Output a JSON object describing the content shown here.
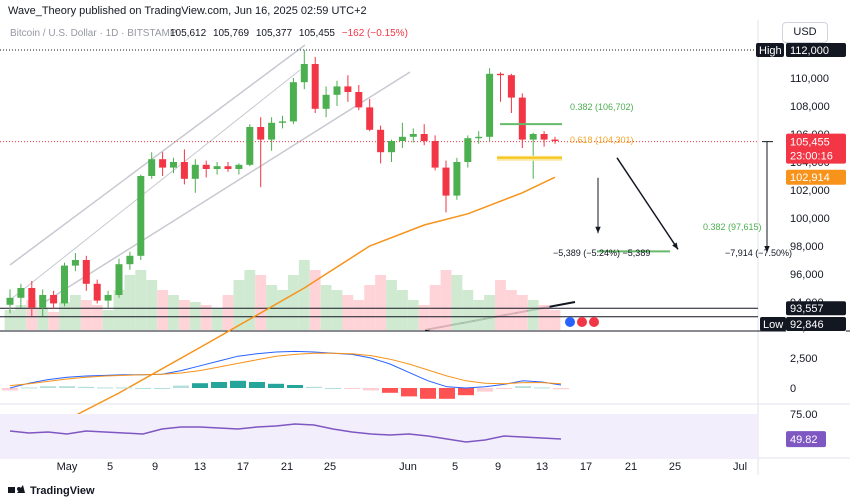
{
  "publisher_line": "Wave_Theory published on TradingView.com, Jun 16, 2025 02:59 UTC+2",
  "currency": "USD",
  "symbol": "Bitcoin / U.S. Dollar · 1D · BITSTAMP",
  "ohlc": {
    "o": "105,612",
    "h": "105,769",
    "l": "105,377",
    "c": "105,455",
    "chg": "−162 (−0.15%)"
  },
  "branding": "TradingView",
  "colors": {
    "up": "#4caf50",
    "down": "#f23645",
    "ma": "#f7931a",
    "fib": "#66bb6a",
    "fib_gold": "#f5c518",
    "macd": "#2962ff",
    "rsi": "#7e57c2"
  },
  "price_labels": {
    "high_tag": "High",
    "high": "112,000",
    "last": "105,455",
    "countdown": "23:00:16",
    "ma": "102,914",
    "p93557": "93,557",
    "p92946": "92,946",
    "low_tag": "Low",
    "low": "92,846",
    "macd_tick": "2,500",
    "macd_zero": "0",
    "rsi_tick": "75.00",
    "rsi_val": "49.82"
  },
  "annotations": {
    "fib382": "0.382 (106,702)",
    "fib618": "0.618 (104,301)",
    "fib382b": "0.382 (97,615)",
    "measure1": "−5,389 (−5.24%) −5,389",
    "measure2": "−7,914 (−7.50%)"
  },
  "chart_data": {
    "type": "candlestick",
    "instrument": "BTC/USD daily",
    "y_ticks": [
      110000,
      108000,
      106000,
      104000,
      102000,
      100000,
      98000,
      96000,
      94000
    ],
    "x_ticks": [
      "May",
      "5",
      "9",
      "13",
      "17",
      "21",
      "25",
      "Jun",
      "5",
      "9",
      "13",
      "17",
      "21",
      "25",
      "Jul"
    ],
    "candles": [
      [
        93800,
        94900,
        93200,
        94300
      ],
      [
        94300,
        95300,
        93600,
        95000
      ],
      [
        95000,
        95500,
        93000,
        93600
      ],
      [
        93600,
        94900,
        93000,
        94500
      ],
      [
        94500,
        94800,
        93500,
        93900
      ],
      [
        93900,
        96800,
        93700,
        96600
      ],
      [
        96600,
        97500,
        96200,
        97000
      ],
      [
        97000,
        97300,
        94800,
        95300
      ],
      [
        95300,
        95600,
        93900,
        94100
      ],
      [
        94100,
        94800,
        93600,
        94500
      ],
      [
        94500,
        97100,
        94300,
        96700
      ],
      [
        96700,
        97600,
        96300,
        97300
      ],
      [
        97300,
        103100,
        97000,
        103000
      ],
      [
        103000,
        104700,
        102800,
        104200
      ],
      [
        104200,
        104700,
        103000,
        103600
      ],
      [
        103600,
        104300,
        103200,
        104000
      ],
      [
        104000,
        104900,
        102400,
        102800
      ],
      [
        102800,
        104200,
        101800,
        103800
      ],
      [
        103800,
        104100,
        102900,
        103500
      ],
      [
        103500,
        104000,
        103100,
        103700
      ],
      [
        103700,
        104000,
        103300,
        103500
      ],
      [
        103500,
        103900,
        103100,
        103800
      ],
      [
        103800,
        106700,
        103700,
        106500
      ],
      [
        106500,
        107200,
        102200,
        105600
      ],
      [
        105600,
        107200,
        104800,
        106800
      ],
      [
        106800,
        107300,
        106400,
        106900
      ],
      [
        106900,
        110000,
        106700,
        109700
      ],
      [
        109700,
        112000,
        109200,
        111000
      ],
      [
        111000,
        111500,
        107500,
        107800
      ],
      [
        107800,
        109400,
        107200,
        108800
      ],
      [
        108800,
        109800,
        108000,
        109400
      ],
      [
        109400,
        110200,
        108300,
        109000
      ],
      [
        109000,
        109500,
        107700,
        107900
      ],
      [
        107900,
        108500,
        106200,
        106300
      ],
      [
        106300,
        106600,
        103900,
        104700
      ],
      [
        104700,
        105600,
        104000,
        105500
      ],
      [
        105500,
        106800,
        105000,
        105800
      ],
      [
        105800,
        106400,
        105400,
        106000
      ],
      [
        106000,
        106700,
        105200,
        105500
      ],
      [
        105500,
        105900,
        103400,
        103600
      ],
      [
        103600,
        104100,
        100400,
        101600
      ],
      [
        101600,
        104300,
        101300,
        104000
      ],
      [
        104000,
        105900,
        103600,
        105700
      ],
      [
        105700,
        106200,
        105300,
        105800
      ],
      [
        105800,
        110700,
        105500,
        110300
      ],
      [
        110300,
        110400,
        108300,
        110200
      ],
      [
        110200,
        110300,
        107500,
        108600
      ],
      [
        108600,
        108900,
        105000,
        105600
      ],
      [
        105600,
        106100,
        102800,
        106000
      ],
      [
        106000,
        106200,
        105100,
        105600
      ],
      [
        105600,
        105800,
        105300,
        105500
      ]
    ],
    "sma": [
      [
        0,
        83500
      ],
      [
        10,
        87500
      ],
      [
        18,
        91000
      ],
      [
        27,
        95000
      ],
      [
        33,
        98000
      ],
      [
        38,
        99500
      ],
      [
        42,
        100300
      ],
      [
        47,
        101800
      ],
      [
        50,
        102914
      ]
    ],
    "levels": {
      "high": 112000,
      "last": 105455,
      "ma": 102914,
      "p93557": 93557,
      "p92946": 92946,
      "low": 92846
    },
    "fib": [
      {
        "label": "0.382",
        "value": 106702
      },
      {
        "label": "0.618",
        "value": 104301
      },
      {
        "label": "0.382",
        "value": 97615
      }
    ],
    "targets": [
      {
        "text": "−5,389 (−5.24%) −5,389",
        "from": 104301,
        "to": 98912
      },
      {
        "text": "−7,914 (−7.50%)",
        "from": 105455,
        "to": 97541
      }
    ],
    "macd": {
      "tick": 2500,
      "macd_line": [
        0,
        400,
        700,
        900,
        1000,
        1050,
        1100,
        1100,
        1150,
        1450,
        1850,
        2250,
        2650,
        2850,
        3000,
        3050,
        3000,
        2900,
        2800,
        2500,
        2000,
        1300,
        600,
        100,
        0,
        100,
        300,
        600,
        500,
        250
      ],
      "signal_line": [
        200,
        350,
        550,
        750,
        900,
        1000,
        1050,
        1100,
        1150,
        1250,
        1450,
        1750,
        2050,
        2350,
        2650,
        2800,
        2900,
        2900,
        2850,
        2700,
        2400,
        2000,
        1500,
        1000,
        600,
        400,
        350,
        450,
        450,
        350
      ],
      "histogram": [
        -200,
        50,
        150,
        150,
        100,
        50,
        50,
        0,
        0,
        200,
        400,
        500,
        600,
        500,
        350,
        250,
        100,
        0,
        -50,
        -200,
        -400,
        -700,
        -900,
        -900,
        -600,
        -300,
        -50,
        150,
        50,
        -100
      ]
    },
    "rsi": {
      "tick": 75,
      "current": 49.82,
      "values": [
        58,
        56,
        57,
        55,
        58,
        57,
        56,
        55,
        60,
        62,
        62,
        61,
        60,
        62,
        63,
        65,
        64,
        60,
        57,
        55,
        54,
        55,
        53,
        50,
        47,
        49,
        53,
        52,
        51,
        50
      ]
    }
  }
}
